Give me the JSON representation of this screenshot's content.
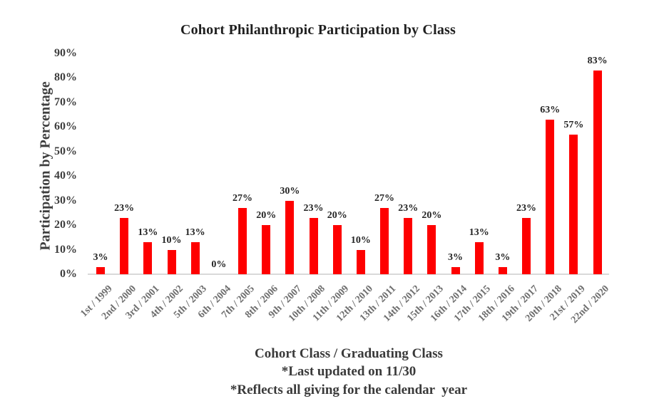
{
  "chart_data": {
    "type": "bar",
    "title": "Cohort Philanthropic Participation by Class",
    "ylabel": "Participation by Percentage",
    "xlabel": "Cohort Class / Graduating Class",
    "footnotes": [
      "*Last updated on 11/30",
      "*Reflects all giving for the calendar  year"
    ],
    "categories": [
      "1st / 1999",
      "2nd / 2000",
      "3rd / 2001",
      "4th / 2002",
      "5th / 2003",
      "6th / 2004",
      "7th / 2005",
      "8th / 2006",
      "9th / 2007",
      "10th / 2008",
      "11th / 2009",
      "12th / 2010",
      "13th / 2011",
      "14th / 2012",
      "15th / 2013",
      "16th / 2014",
      "17th / 2015",
      "18th / 2016",
      "19th / 2017",
      "20th / 2018",
      "21st / 2019",
      "22nd / 2020"
    ],
    "values": [
      3,
      23,
      13,
      10,
      13,
      0,
      27,
      20,
      30,
      23,
      20,
      10,
      27,
      23,
      20,
      3,
      13,
      3,
      23,
      63,
      57,
      83
    ],
    "data_labels": [
      "3%",
      "23%",
      "13%",
      "10%",
      "13%",
      "0%",
      "27%",
      "20%",
      "30%",
      "23%",
      "20%",
      "10%",
      "27%",
      "23%",
      "20%",
      "3%",
      "13%",
      "3%",
      "23%",
      "63%",
      "57%",
      "83%"
    ],
    "yticks": [
      "0%",
      "10%",
      "20%",
      "30%",
      "40%",
      "50%",
      "60%",
      "70%",
      "80%",
      "90%"
    ],
    "ylim": [
      0,
      90
    ],
    "grid": "off",
    "legend": "none",
    "bar_color": "#fe0000",
    "axis_line_color": "#d9d9d9",
    "text_color_dark": "#1f1f1f",
    "text_color_axis": "#3e3e3e",
    "text_color_xticks": "#6e6e6e"
  }
}
